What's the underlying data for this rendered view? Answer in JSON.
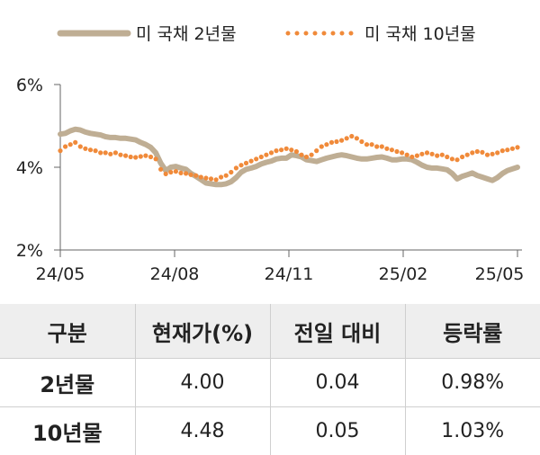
{
  "chart_data": {
    "type": "line",
    "legend": [
      "미 국채 2년물",
      "미 국채 10년물"
    ],
    "legend_position": "top",
    "x_tick_labels": [
      "24/05",
      "24/08",
      "24/11",
      "25/02",
      "25/05"
    ],
    "y_tick_labels": [
      "6%",
      "4%",
      "2%"
    ],
    "ylim": [
      2,
      6
    ],
    "grid": false,
    "series": [
      {
        "name": "미 국채 2년물",
        "style": "solid",
        "color": "#bfae94",
        "values": [
          4.8,
          4.82,
          4.88,
          4.92,
          4.9,
          4.85,
          4.82,
          4.8,
          4.78,
          4.74,
          4.72,
          4.72,
          4.7,
          4.7,
          4.68,
          4.66,
          4.6,
          4.55,
          4.48,
          4.35,
          4.1,
          3.92,
          4.0,
          4.02,
          3.98,
          3.95,
          3.85,
          3.78,
          3.7,
          3.62,
          3.6,
          3.58,
          3.58,
          3.6,
          3.65,
          3.75,
          3.88,
          3.95,
          3.98,
          4.02,
          4.08,
          4.12,
          4.15,
          4.2,
          4.22,
          4.22,
          4.3,
          4.28,
          4.25,
          4.18,
          4.16,
          4.14,
          4.18,
          4.22,
          4.25,
          4.28,
          4.3,
          4.28,
          4.25,
          4.22,
          4.2,
          4.2,
          4.22,
          4.24,
          4.25,
          4.22,
          4.18,
          4.18,
          4.2,
          4.2,
          4.18,
          4.12,
          4.05,
          4.0,
          3.98,
          3.98,
          3.96,
          3.94,
          3.85,
          3.72,
          3.78,
          3.82,
          3.86,
          3.8,
          3.76,
          3.72,
          3.68,
          3.75,
          3.85,
          3.92,
          3.96,
          4.0
        ]
      },
      {
        "name": "미 국채 10년물",
        "style": "dotted",
        "color": "#f08a3a",
        "values": [
          4.4,
          4.5,
          4.55,
          4.6,
          4.5,
          4.45,
          4.42,
          4.4,
          4.35,
          4.35,
          4.32,
          4.35,
          4.3,
          4.28,
          4.25,
          4.24,
          4.26,
          4.28,
          4.25,
          4.2,
          3.95,
          3.84,
          3.88,
          3.9,
          3.86,
          3.85,
          3.82,
          3.8,
          3.76,
          3.74,
          3.72,
          3.7,
          3.76,
          3.8,
          3.88,
          3.98,
          4.05,
          4.1,
          4.15,
          4.2,
          4.25,
          4.3,
          4.35,
          4.4,
          4.42,
          4.45,
          4.42,
          4.38,
          4.3,
          4.25,
          4.3,
          4.4,
          4.5,
          4.55,
          4.6,
          4.62,
          4.65,
          4.7,
          4.75,
          4.7,
          4.62,
          4.55,
          4.55,
          4.5,
          4.5,
          4.45,
          4.42,
          4.38,
          4.35,
          4.3,
          4.25,
          4.28,
          4.32,
          4.35,
          4.32,
          4.28,
          4.3,
          4.25,
          4.2,
          4.18,
          4.25,
          4.3,
          4.35,
          4.38,
          4.36,
          4.3,
          4.32,
          4.35,
          4.4,
          4.42,
          4.45,
          4.48
        ]
      }
    ]
  },
  "table": {
    "headers": [
      "구분",
      "현재가(%)",
      "전일 대비",
      "등락률"
    ],
    "rows": [
      {
        "label": "2년물",
        "price": "4.00",
        "change": "0.04",
        "rate": "0.98%"
      },
      {
        "label": "10년물",
        "price": "4.48",
        "change": "0.05",
        "rate": "1.03%"
      }
    ]
  }
}
